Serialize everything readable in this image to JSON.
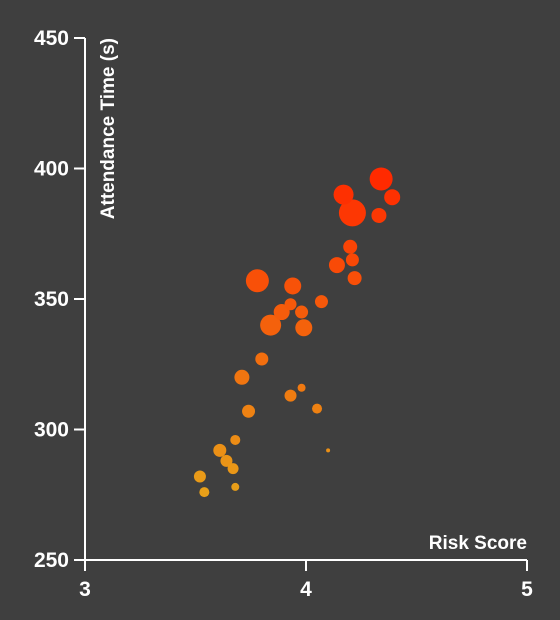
{
  "chart_data": {
    "type": "scatter",
    "title": "",
    "xlabel": "Risk Score",
    "ylabel": "Attendance Time (s)",
    "xlim": [
      3,
      5
    ],
    "ylim": [
      250,
      450
    ],
    "x_ticks": [
      "3",
      "4",
      "5"
    ],
    "y_ticks": [
      "250",
      "300",
      "350",
      "400",
      "450"
    ],
    "grid": false,
    "legend": "none",
    "size_encoding": "point radius varies",
    "color_scale": [
      "#e8a019",
      "#ff2a00"
    ],
    "points": [
      {
        "x": 4.34,
        "y": 396,
        "r": 11.5
      },
      {
        "x": 4.17,
        "y": 390,
        "r": 10
      },
      {
        "x": 4.39,
        "y": 389,
        "r": 8
      },
      {
        "x": 4.21,
        "y": 383,
        "r": 13.5
      },
      {
        "x": 4.33,
        "y": 382,
        "r": 7.5
      },
      {
        "x": 4.2,
        "y": 370,
        "r": 7
      },
      {
        "x": 4.21,
        "y": 365,
        "r": 6.5
      },
      {
        "x": 4.14,
        "y": 363,
        "r": 8
      },
      {
        "x": 4.22,
        "y": 358,
        "r": 7
      },
      {
        "x": 3.78,
        "y": 357,
        "r": 11.5
      },
      {
        "x": 3.94,
        "y": 355,
        "r": 8.5
      },
      {
        "x": 4.07,
        "y": 349,
        "r": 6.5
      },
      {
        "x": 3.93,
        "y": 348,
        "r": 6
      },
      {
        "x": 3.89,
        "y": 345,
        "r": 8
      },
      {
        "x": 3.98,
        "y": 345,
        "r": 6.5
      },
      {
        "x": 3.84,
        "y": 340,
        "r": 10.5
      },
      {
        "x": 3.99,
        "y": 339,
        "r": 8.5
      },
      {
        "x": 3.8,
        "y": 327,
        "r": 6.5
      },
      {
        "x": 3.71,
        "y": 320,
        "r": 7.5
      },
      {
        "x": 3.98,
        "y": 316,
        "r": 4
      },
      {
        "x": 3.93,
        "y": 313,
        "r": 6
      },
      {
        "x": 4.05,
        "y": 308,
        "r": 5
      },
      {
        "x": 3.74,
        "y": 307,
        "r": 6.5
      },
      {
        "x": 3.68,
        "y": 296,
        "r": 5
      },
      {
        "x": 3.61,
        "y": 292,
        "r": 6.5
      },
      {
        "x": 4.1,
        "y": 292,
        "r": 2
      },
      {
        "x": 3.64,
        "y": 288,
        "r": 6
      },
      {
        "x": 3.67,
        "y": 285,
        "r": 5.5
      },
      {
        "x": 3.52,
        "y": 282,
        "r": 6
      },
      {
        "x": 3.68,
        "y": 278,
        "r": 4
      },
      {
        "x": 3.54,
        "y": 276,
        "r": 5
      }
    ]
  }
}
